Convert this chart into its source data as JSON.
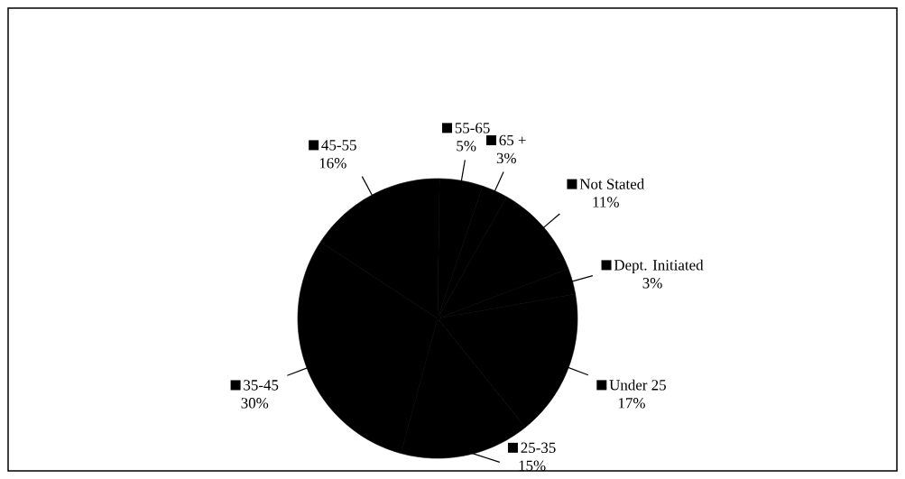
{
  "chart_data": {
    "type": "pie",
    "categories": [
      "Under 25",
      "25-35",
      "35-45",
      "45-55",
      "55-65",
      "65 +",
      "Not Stated",
      "Dept. Initiated"
    ],
    "values": [
      17,
      15,
      30,
      16,
      5,
      3,
      11,
      3
    ],
    "value_labels": [
      "17%",
      "15%",
      "30%",
      "16%",
      "5%",
      "3%",
      "11%",
      "3%"
    ],
    "legend": "right",
    "colors": [
      "#000000",
      "#000000",
      "#000000",
      "#000000",
      "#000000",
      "#000000",
      "#000000",
      "#000000"
    ]
  }
}
